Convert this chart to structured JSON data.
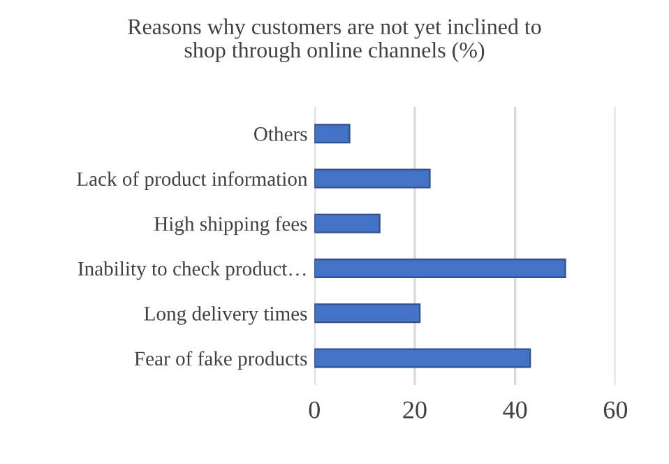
{
  "chart_data": {
    "type": "bar",
    "orientation": "horizontal",
    "title": "Reasons why customers are not yet inclined to\nshop through online channels (%)",
    "categories": [
      "Others",
      "Lack of product information",
      "High shipping fees",
      "Inability to check product…",
      "Long delivery times",
      "Fear of fake products"
    ],
    "values": [
      7,
      23,
      13,
      50,
      21,
      43
    ],
    "color": "#4472c4",
    "xlim": [
      0,
      60
    ],
    "xticks": [
      0,
      20,
      40,
      60
    ],
    "grid": "x"
  }
}
